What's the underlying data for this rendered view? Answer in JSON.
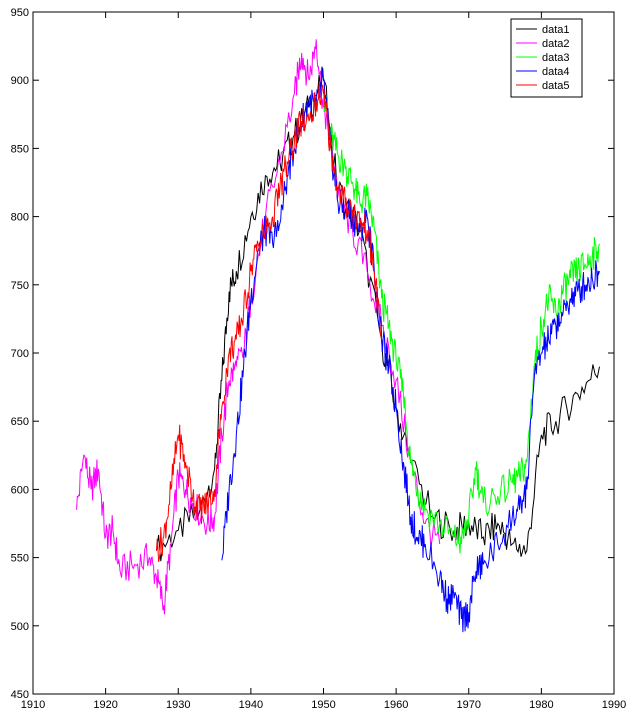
{
  "chart_data": {
    "type": "line",
    "title": "",
    "xlabel": "",
    "ylabel": "",
    "xlim": [
      1910,
      1990
    ],
    "ylim": [
      450,
      950
    ],
    "xticks": [
      1910,
      1920,
      1930,
      1940,
      1950,
      1960,
      1970,
      1980,
      1990
    ],
    "yticks": [
      450,
      500,
      550,
      600,
      650,
      700,
      750,
      800,
      850,
      900,
      950
    ],
    "grid": false,
    "legend_position": "top-right",
    "series": [
      {
        "name": "data1",
        "color": "#000000",
        "x": [
          1927,
          1930,
          1933,
          1935,
          1936,
          1937,
          1938,
          1940,
          1942,
          1944,
          1946,
          1948,
          1950,
          1952,
          1955,
          1958,
          1960,
          1962,
          1965,
          1968,
          1970,
          1972,
          1974,
          1976,
          1978,
          1980,
          1982,
          1985,
          1988
        ],
        "y": [
          555,
          570,
          585,
          615,
          680,
          745,
          760,
          800,
          830,
          840,
          860,
          880,
          900,
          820,
          790,
          710,
          660,
          620,
          580,
          570,
          575,
          565,
          575,
          560,
          555,
          640,
          650,
          670,
          690
        ]
      },
      {
        "name": "data2",
        "color": "#ff00ff",
        "x": [
          1916,
          1917,
          1918,
          1919,
          1920,
          1921,
          1922,
          1924,
          1926,
          1927,
          1928,
          1929,
          1930,
          1931,
          1932,
          1934,
          1935,
          1936,
          1937,
          1938,
          1939,
          1940,
          1942,
          1944,
          1946,
          1947,
          1948,
          1949,
          1950,
          1951,
          1952,
          1954,
          1956,
          1958,
          1960,
          1962,
          1964,
          1966
        ],
        "y": [
          585,
          625,
          600,
          615,
          565,
          570,
          540,
          545,
          550,
          535,
          515,
          560,
          610,
          600,
          590,
          575,
          580,
          640,
          680,
          690,
          700,
          740,
          800,
          840,
          890,
          920,
          900,
          930,
          880,
          860,
          815,
          790,
          760,
          720,
          680,
          620,
          575,
          560
        ]
      },
      {
        "name": "data3",
        "color": "#00ff00",
        "x": [
          1950,
          1951,
          1952,
          1953,
          1954,
          1955,
          1956,
          1957,
          1958,
          1959,
          1960,
          1961,
          1962,
          1963,
          1964,
          1966,
          1968,
          1969,
          1970,
          1971,
          1972,
          1974,
          1976,
          1977,
          1978,
          1979,
          1980,
          1981,
          1982,
          1983,
          1984,
          1985,
          1986,
          1987,
          1988
        ],
        "y": [
          890,
          860,
          845,
          835,
          825,
          810,
          815,
          790,
          740,
          720,
          695,
          670,
          620,
          600,
          585,
          575,
          565,
          560,
          580,
          615,
          590,
          595,
          605,
          610,
          620,
          690,
          720,
          740,
          730,
          745,
          755,
          760,
          765,
          770,
          780
        ]
      },
      {
        "name": "data4",
        "color": "#0000ff",
        "x": [
          1936,
          1937,
          1938,
          1939,
          1940,
          1941,
          1942,
          1943,
          1944,
          1945,
          1946,
          1947,
          1948,
          1949,
          1950,
          1951,
          1952,
          1953,
          1954,
          1955,
          1956,
          1957,
          1958,
          1959,
          1960,
          1961,
          1962,
          1963,
          1964,
          1966,
          1967,
          1968,
          1969,
          1970,
          1971,
          1972,
          1974,
          1976,
          1977,
          1978,
          1979,
          1980,
          1981,
          1982,
          1983,
          1984,
          1985,
          1986,
          1987,
          1988
        ],
        "y": [
          548,
          600,
          640,
          690,
          740,
          775,
          790,
          780,
          795,
          830,
          850,
          870,
          885,
          880,
          900,
          850,
          810,
          805,
          800,
          790,
          800,
          760,
          710,
          690,
          660,
          620,
          580,
          565,
          560,
          535,
          520,
          520,
          505,
          510,
          540,
          545,
          560,
          580,
          585,
          600,
          680,
          700,
          710,
          720,
          730,
          740,
          745,
          750,
          755,
          760
        ]
      },
      {
        "name": "data5",
        "color": "#ff0000",
        "x": [
          1927,
          1928,
          1929,
          1930,
          1931,
          1932,
          1933,
          1934,
          1935,
          1936,
          1937,
          1938,
          1939,
          1940,
          1941,
          1942,
          1943,
          1944,
          1945,
          1946,
          1947,
          1948,
          1949,
          1950,
          1951,
          1952,
          1953,
          1954,
          1955,
          1956,
          1957,
          1958
        ],
        "y": [
          555,
          565,
          600,
          640,
          620,
          595,
          585,
          590,
          600,
          660,
          700,
          710,
          730,
          760,
          780,
          790,
          800,
          820,
          840,
          855,
          870,
          870,
          885,
          890,
          850,
          820,
          810,
          805,
          795,
          790,
          760,
          710
        ]
      }
    ]
  }
}
